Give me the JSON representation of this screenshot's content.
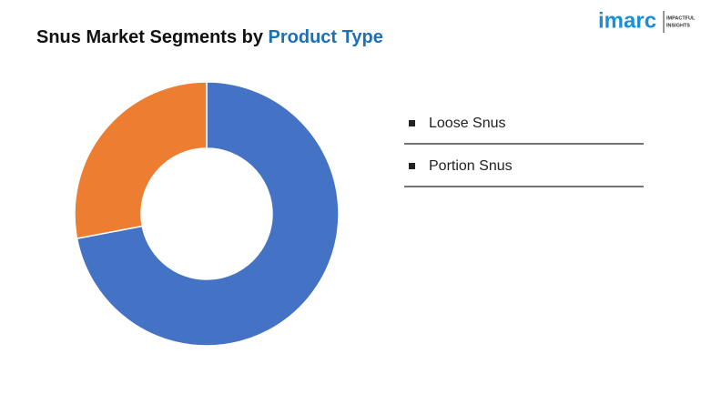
{
  "logo": {
    "name": "imarc",
    "tagline": [
      "IMPACTFUL",
      "INSIGHTS"
    ]
  },
  "chart_data": {
    "type": "donut",
    "title": "Snus Market Segments by",
    "title_highlight": "Product Type",
    "categories": [
      "Loose Snus",
      "Portion Snus"
    ],
    "values": [
      72,
      28
    ],
    "colors": [
      "#4472c4",
      "#ed7d31"
    ]
  }
}
